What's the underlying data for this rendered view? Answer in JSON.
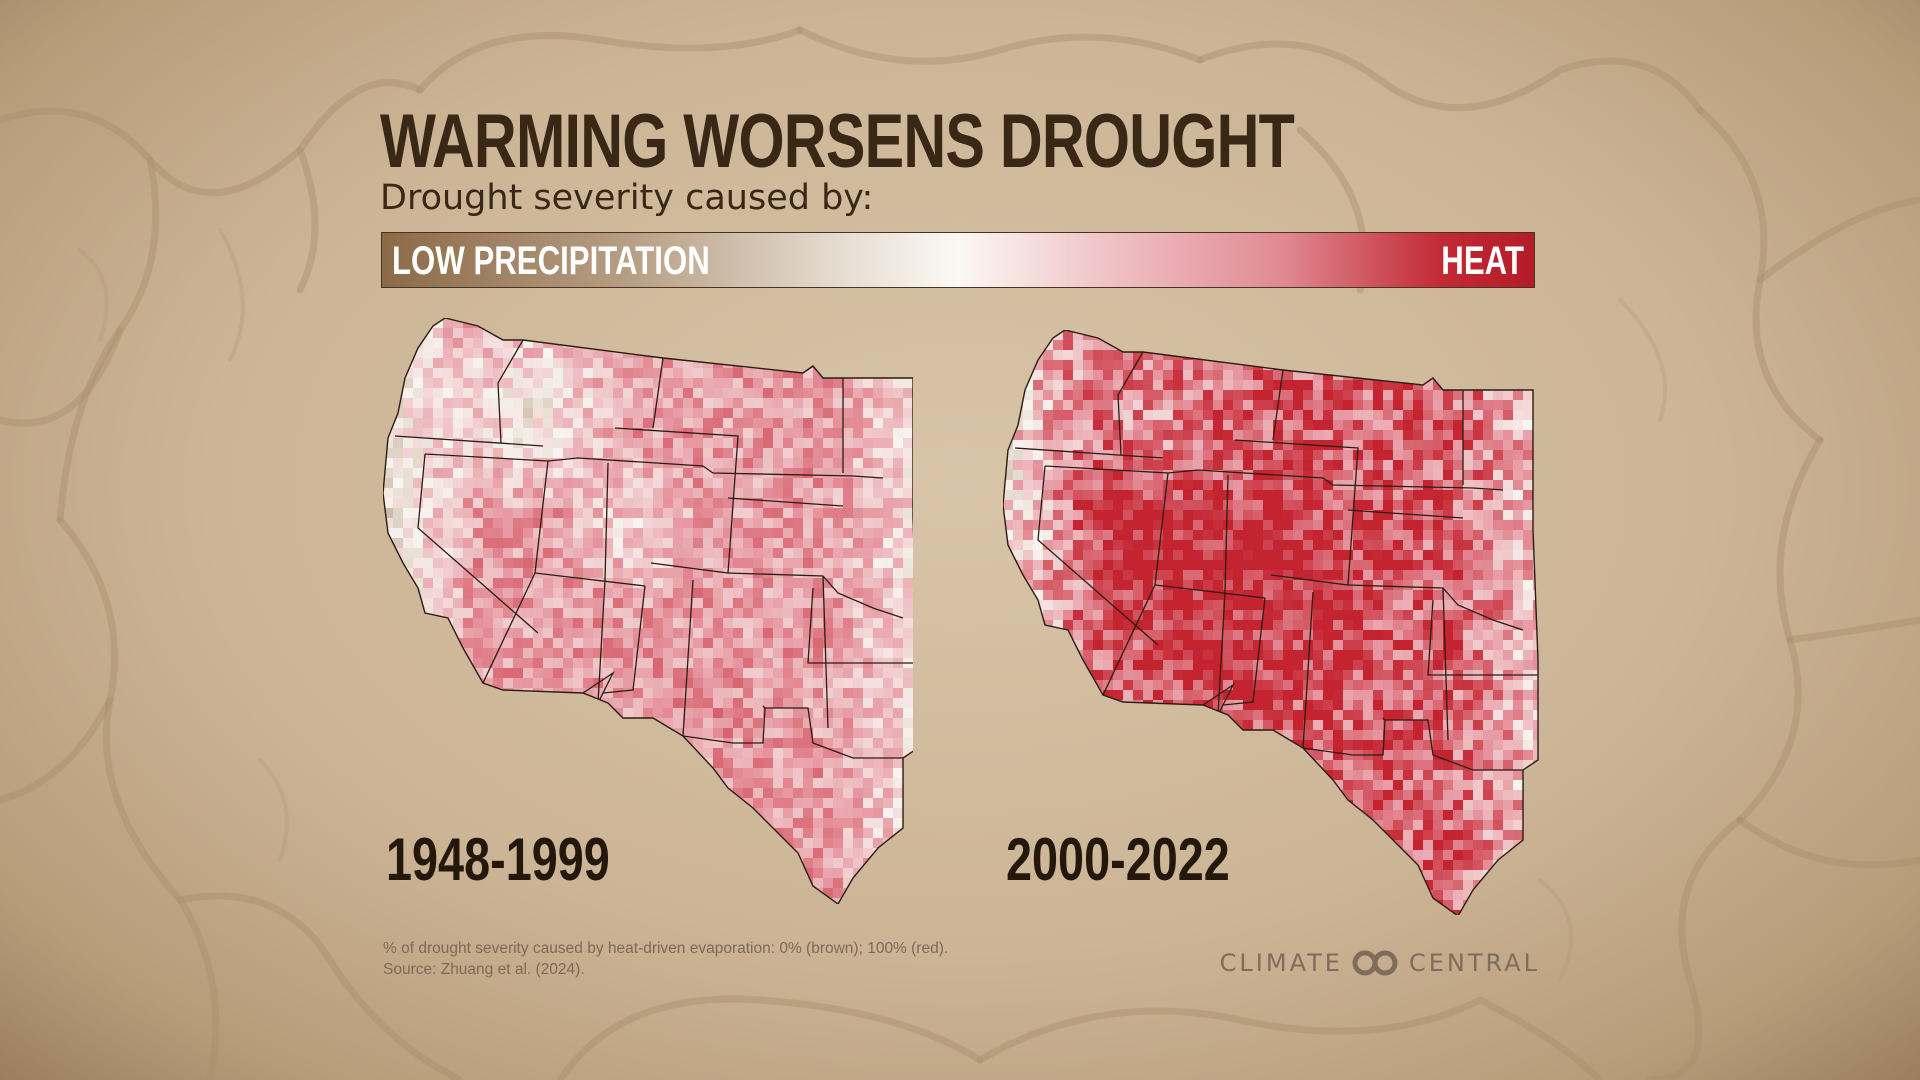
{
  "title": "WARMING WORSENS DROUGHT",
  "subtitle": "Drought severity caused by:",
  "legend": {
    "low_label": "LOW PRECIPITATION",
    "high_label": "HEAT",
    "low_color": "#8b6a47",
    "mid_color": "#fbf8f4",
    "high_color": "#b31c28"
  },
  "panels": [
    {
      "period": "1948-1999"
    },
    {
      "period": "2000-2022"
    }
  ],
  "footnote": {
    "line1": "% of drought severity caused by heat-driven evaporation: 0% (brown); 100% (red).",
    "line2": "Source: Zhuang et al. (2024)."
  },
  "logo": {
    "left_word": "CLIMATE",
    "right_word": "CENTRAL",
    "color": "#7f6c5a"
  },
  "colors": {
    "title": "#3a2816",
    "background": "#d3bea1"
  }
}
